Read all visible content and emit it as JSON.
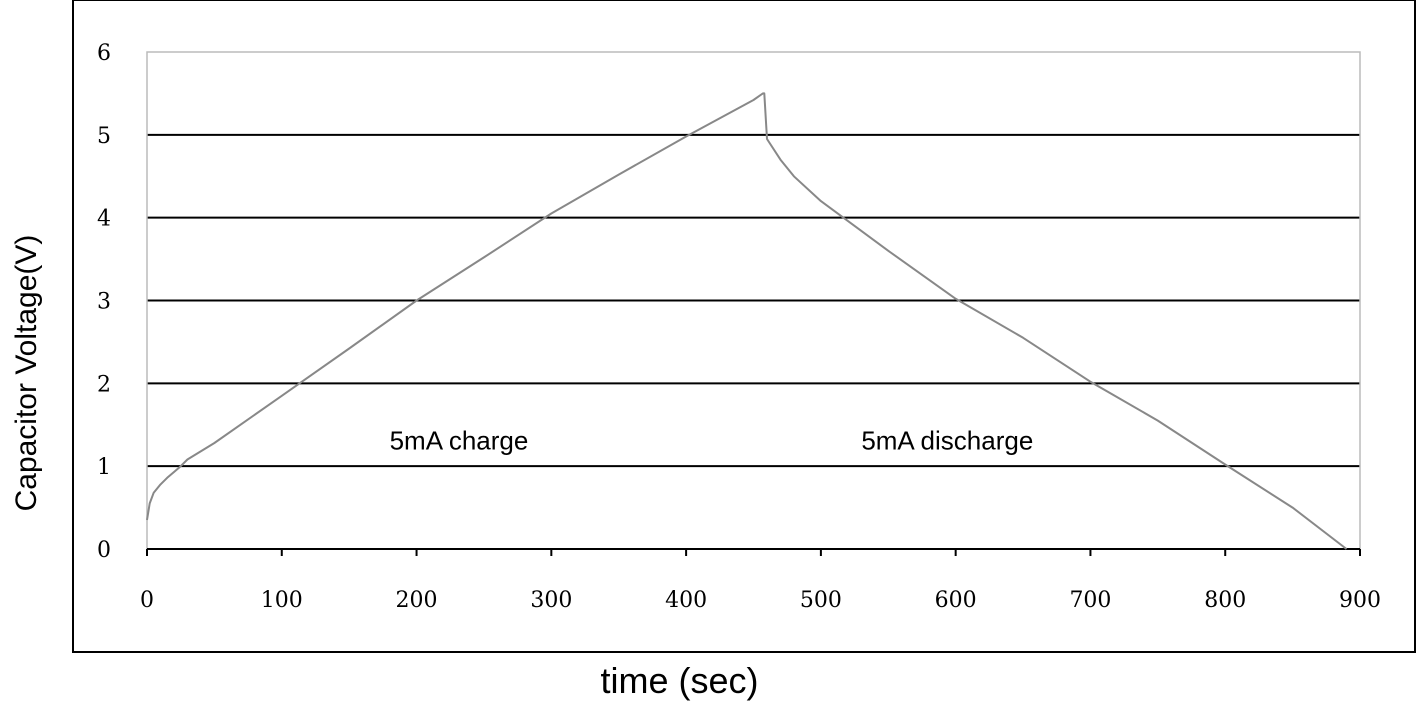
{
  "chart_data": {
    "type": "line",
    "title": "",
    "xlabel": "time (sec)",
    "ylabel": "Capacitor Voltage(V)",
    "xlim": [
      0,
      900
    ],
    "ylim": [
      0,
      6
    ],
    "xticks": [
      0,
      100,
      200,
      300,
      400,
      500,
      600,
      700,
      800,
      900
    ],
    "yticks": [
      0,
      1,
      2,
      3,
      4,
      5,
      6
    ],
    "grid": "horizontal",
    "legend": "none",
    "series": [
      {
        "color": "#888888",
        "x": [
          0,
          2,
          5,
          10,
          15,
          20,
          25,
          30,
          50,
          100,
          150,
          200,
          250,
          300,
          350,
          400,
          450,
          457,
          458,
          460,
          470,
          480,
          500,
          550,
          600,
          650,
          700,
          750,
          800,
          850,
          890
        ],
        "y": [
          0.35,
          0.55,
          0.68,
          0.78,
          0.86,
          0.93,
          1.0,
          1.08,
          1.28,
          1.85,
          2.42,
          3.0,
          3.52,
          4.05,
          4.52,
          4.98,
          5.42,
          5.5,
          5.5,
          4.95,
          4.7,
          4.5,
          4.2,
          3.6,
          3.02,
          2.55,
          2.02,
          1.55,
          1.02,
          0.5,
          0.0
        ]
      }
    ],
    "annotations": [
      {
        "text": "5mA charge",
        "x": 180,
        "y": 1.2
      },
      {
        "text": "5mA discharge",
        "x": 530,
        "y": 1.2
      }
    ]
  }
}
